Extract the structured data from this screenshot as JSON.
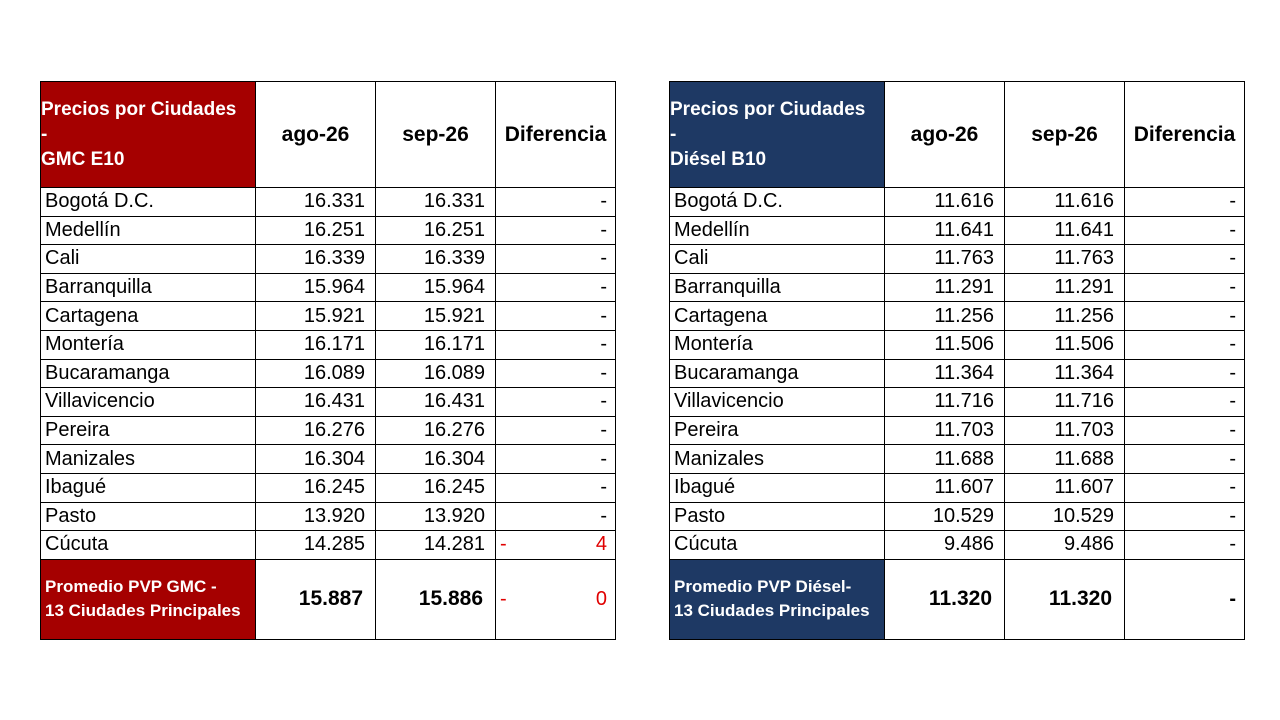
{
  "colors": {
    "gmc_header": "#a50000",
    "diesel_header": "#1e3964",
    "negative": "#e00000"
  },
  "gmc": {
    "title_line1": "Precios por Ciudades",
    "title_line2": "-",
    "title_line3": "GMC E10",
    "col_ago": "ago-26",
    "col_sep": "sep-26",
    "col_diff": "Diferencia",
    "rows": [
      {
        "city": "Bogotá D.C.",
        "ago": "16.331",
        "sep": "16.331",
        "diff": "-"
      },
      {
        "city": "Medellín",
        "ago": "16.251",
        "sep": "16.251",
        "diff": "-"
      },
      {
        "city": "Cali",
        "ago": "16.339",
        "sep": "16.339",
        "diff": "-"
      },
      {
        "city": "Barranquilla",
        "ago": "15.964",
        "sep": "15.964",
        "diff": "-"
      },
      {
        "city": "Cartagena",
        "ago": "15.921",
        "sep": "15.921",
        "diff": "-"
      },
      {
        "city": "Montería",
        "ago": "16.171",
        "sep": "16.171",
        "diff": "-"
      },
      {
        "city": "Bucaramanga",
        "ago": "16.089",
        "sep": "16.089",
        "diff": "-"
      },
      {
        "city": "Villavicencio",
        "ago": "16.431",
        "sep": "16.431",
        "diff": "-"
      },
      {
        "city": "Pereira",
        "ago": "16.276",
        "sep": "16.276",
        "diff": "-"
      },
      {
        "city": "Manizales",
        "ago": "16.304",
        "sep": "16.304",
        "diff": "-"
      },
      {
        "city": "Ibagué",
        "ago": "16.245",
        "sep": "16.245",
        "diff": "-"
      },
      {
        "city": "Pasto",
        "ago": "13.920",
        "sep": "13.920",
        "diff": "-"
      },
      {
        "city": "Cúcuta",
        "ago": "14.285",
        "sep": "14.281",
        "diff_sign": "-",
        "diff": "4"
      }
    ],
    "footer_line1": "Promedio PVP GMC -",
    "footer_line2": "13 Ciudades Principales",
    "footer_ago": "15.887",
    "footer_sep": "15.886",
    "footer_diff_sign": "-",
    "footer_diff": "0"
  },
  "diesel": {
    "title_line1": "Precios por Ciudades",
    "title_line2": "-",
    "title_line3": "Diésel B10",
    "col_ago": "ago-26",
    "col_sep": "sep-26",
    "col_diff": "Diferencia",
    "rows": [
      {
        "city": "Bogotá D.C.",
        "ago": "11.616",
        "sep": "11.616",
        "diff": "-"
      },
      {
        "city": "Medellín",
        "ago": "11.641",
        "sep": "11.641",
        "diff": "-"
      },
      {
        "city": "Cali",
        "ago": "11.763",
        "sep": "11.763",
        "diff": "-"
      },
      {
        "city": "Barranquilla",
        "ago": "11.291",
        "sep": "11.291",
        "diff": "-"
      },
      {
        "city": "Cartagena",
        "ago": "11.256",
        "sep": "11.256",
        "diff": "-"
      },
      {
        "city": "Montería",
        "ago": "11.506",
        "sep": "11.506",
        "diff": "-"
      },
      {
        "city": "Bucaramanga",
        "ago": "11.364",
        "sep": "11.364",
        "diff": "-"
      },
      {
        "city": "Villavicencio",
        "ago": "11.716",
        "sep": "11.716",
        "diff": "-"
      },
      {
        "city": "Pereira",
        "ago": "11.703",
        "sep": "11.703",
        "diff": "-"
      },
      {
        "city": "Manizales",
        "ago": "11.688",
        "sep": "11.688",
        "diff": "-"
      },
      {
        "city": "Ibagué",
        "ago": "11.607",
        "sep": "11.607",
        "diff": "-"
      },
      {
        "city": "Pasto",
        "ago": "10.529",
        "sep": "10.529",
        "diff": "-"
      },
      {
        "city": "Cúcuta",
        "ago": "9.486",
        "sep": "9.486",
        "diff": "-"
      }
    ],
    "footer_line1": "Promedio PVP Diésel-",
    "footer_line2": "13 Ciudades Principales",
    "footer_ago": "11.320",
    "footer_sep": "11.320",
    "footer_diff": "-"
  }
}
